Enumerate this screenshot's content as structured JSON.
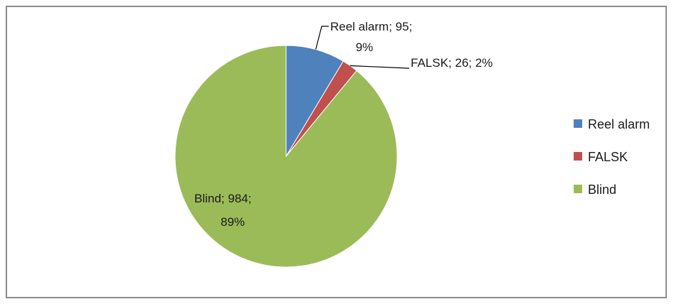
{
  "chart_data": {
    "type": "pie",
    "title": "",
    "slices": [
      {
        "name": "Reel alarm",
        "value": 95,
        "percent": 9,
        "color": "#4f81bd",
        "label_lines": [
          "Reel alarm; 95;",
          "9%"
        ]
      },
      {
        "name": "FALSK",
        "value": 26,
        "percent": 2,
        "color": "#c0504d",
        "label_lines": [
          "FALSK; 26; 2%"
        ]
      },
      {
        "name": "Blind",
        "value": 984,
        "percent": 89,
        "color": "#9bbb59",
        "label_lines": [
          "Blind; 984;",
          "89%"
        ]
      }
    ],
    "legend": {
      "placement": "right",
      "items": [
        "Reel alarm",
        "FALSK",
        "Blind"
      ]
    },
    "start_angle": "12 o'clock",
    "direction": "clockwise"
  }
}
